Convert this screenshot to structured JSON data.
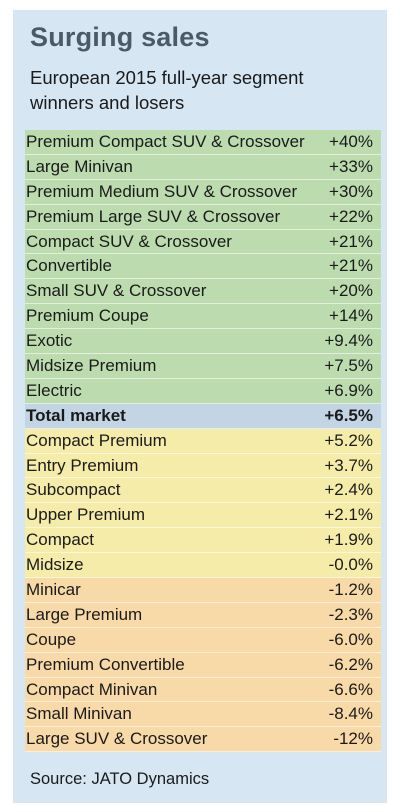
{
  "chart_data": {
    "type": "table",
    "title": "Surging sales",
    "subtitle": "European 2015 full-year segment winners and losers",
    "source": "Source: JATO Dynamics",
    "colors": {
      "panel": "#d6e6f2",
      "title": "#4a5a66",
      "winners": "#bcdcb0",
      "total": "#c3d5e4",
      "modest": "#f4eca8",
      "losers": "#f8d9a8"
    },
    "rows": [
      {
        "segment": "Premium Compact SUV & Crossover",
        "change": "+40%",
        "value": 40,
        "group": "win"
      },
      {
        "segment": "Large Minivan",
        "change": "+33%",
        "value": 33,
        "group": "win"
      },
      {
        "segment": "Premium Medium SUV & Crossover",
        "change": "+30%",
        "value": 30,
        "group": "win"
      },
      {
        "segment": "Premium Large SUV & Crossover",
        "change": "+22%",
        "value": 22,
        "group": "win"
      },
      {
        "segment": "Compact SUV & Crossover",
        "change": "+21%",
        "value": 21,
        "group": "win"
      },
      {
        "segment": "Convertible",
        "change": "+21%",
        "value": 21,
        "group": "win"
      },
      {
        "segment": "Small SUV & Crossover",
        "change": "+20%",
        "value": 20,
        "group": "win"
      },
      {
        "segment": "Premium Coupe",
        "change": "+14%",
        "value": 14,
        "group": "win"
      },
      {
        "segment": "Exotic",
        "change": "+9.4%",
        "value": 9.4,
        "group": "win"
      },
      {
        "segment": "Midsize Premium",
        "change": "+7.5%",
        "value": 7.5,
        "group": "win"
      },
      {
        "segment": "Electric",
        "change": "+6.9%",
        "value": 6.9,
        "group": "win"
      },
      {
        "segment": "Total market",
        "change": "+6.5%",
        "value": 6.5,
        "group": "total"
      },
      {
        "segment": "Compact Premium",
        "change": "+5.2%",
        "value": 5.2,
        "group": "mid"
      },
      {
        "segment": "Entry Premium",
        "change": "+3.7%",
        "value": 3.7,
        "group": "mid"
      },
      {
        "segment": "Subcompact",
        "change": "+2.4%",
        "value": 2.4,
        "group": "mid"
      },
      {
        "segment": "Upper Premium",
        "change": "+2.1%",
        "value": 2.1,
        "group": "mid"
      },
      {
        "segment": "Compact",
        "change": "+1.9%",
        "value": 1.9,
        "group": "mid"
      },
      {
        "segment": "Midsize",
        "change": "-0.0%",
        "value": -0.0,
        "group": "mid"
      },
      {
        "segment": "Minicar",
        "change": "-1.2%",
        "value": -1.2,
        "group": "lose"
      },
      {
        "segment": "Large Premium",
        "change": "-2.3%",
        "value": -2.3,
        "group": "lose"
      },
      {
        "segment": "Coupe",
        "change": "-6.0%",
        "value": -6.0,
        "group": "lose"
      },
      {
        "segment": "Premium Convertible",
        "change": "-6.2%",
        "value": -6.2,
        "group": "lose"
      },
      {
        "segment": "Compact Minivan",
        "change": "-6.6%",
        "value": -6.6,
        "group": "lose"
      },
      {
        "segment": "Small Minivan",
        "change": "-8.4%",
        "value": -8.4,
        "group": "lose"
      },
      {
        "segment": "Large SUV & Crossover",
        "change": "-12%",
        "value": -12,
        "group": "lose"
      }
    ]
  }
}
